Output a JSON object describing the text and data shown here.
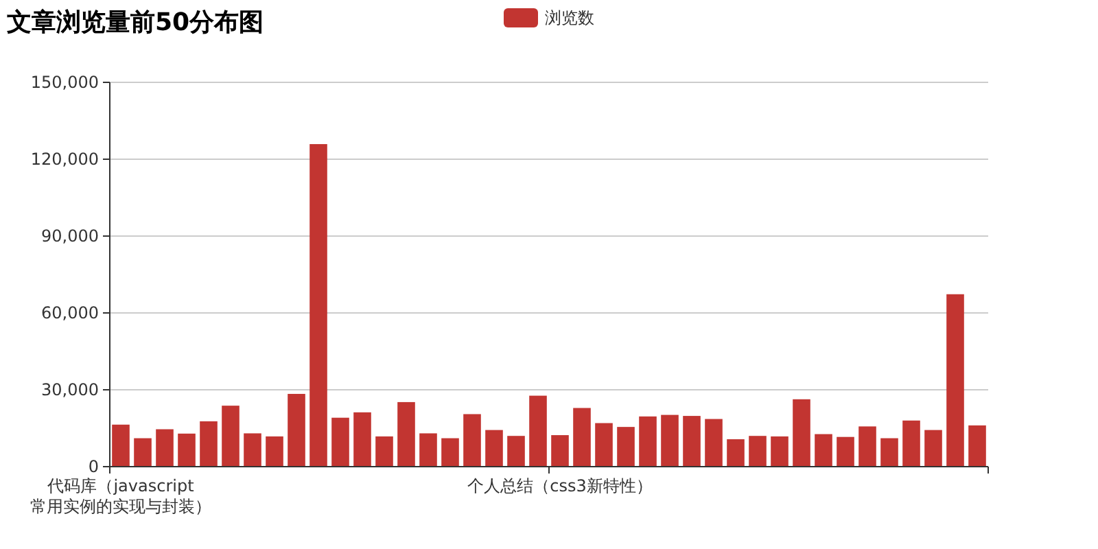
{
  "chart_data": {
    "type": "bar",
    "title": "文章浏览量前50分布图",
    "categories": [
      "代码库（javascript常用实例的实现与封装）",
      null,
      null,
      null,
      null,
      null,
      null,
      null,
      null,
      null,
      null,
      null,
      null,
      null,
      null,
      null,
      null,
      null,
      null,
      null,
      "个人总结（css3新特性）",
      null,
      null,
      null,
      null,
      null,
      null,
      null,
      null,
      null,
      null,
      null,
      null,
      null,
      null,
      null,
      null,
      null,
      null,
      null
    ],
    "series": [
      {
        "name": "浏览数",
        "color": "#c23531",
        "values": [
          16400,
          11100,
          14600,
          12900,
          17700,
          23800,
          13000,
          11800,
          28400,
          125900,
          19100,
          21200,
          11800,
          25200,
          13000,
          11100,
          20500,
          14300,
          12000,
          27700,
          12300,
          22900,
          17000,
          15500,
          19600,
          20200,
          19800,
          18600,
          10700,
          12000,
          11800,
          26300,
          12700,
          11600,
          15700,
          11100,
          18000,
          14300,
          67300,
          16100
        ]
      }
    ],
    "ylim": [
      0,
      150000
    ],
    "yticks": [
      0,
      {
        "value": 30000,
        "label": "30,000"
      },
      {
        "value": 60000,
        "label": "60,000"
      },
      {
        "value": 90000,
        "label": "90,000"
      },
      {
        "value": 120000,
        "label": "120,000"
      },
      {
        "value": 150000,
        "label": "150,000"
      }
    ],
    "grid": "y",
    "legend": "top"
  }
}
